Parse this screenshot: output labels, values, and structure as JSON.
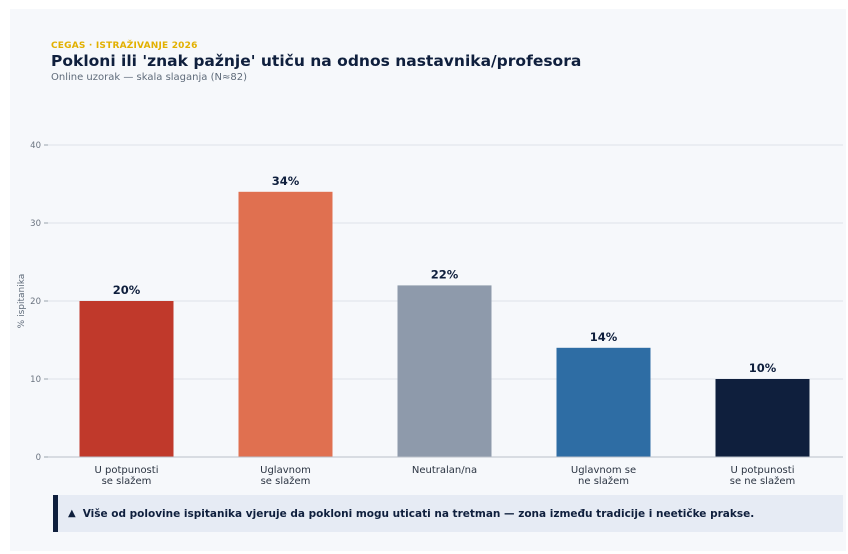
{
  "header": {
    "kicker": "CEGAS · ISTRAŽIVANJE 2026",
    "title": "Pokloni ili 'znak pažnje' utiču na odnos nastavnika/profesora",
    "subtitle": "Online uzorak — skala slaganja (N≈82)"
  },
  "chart_data": {
    "type": "bar",
    "categories": [
      [
        "U potpunosti",
        "se slažem"
      ],
      [
        "Uglavnom",
        "se slažem"
      ],
      [
        "Neutralan/na"
      ],
      [
        "Uglavnom se",
        "ne slažem"
      ],
      [
        "U potpunosti",
        "se ne slažem"
      ]
    ],
    "values": [
      20,
      34,
      22,
      14,
      10
    ],
    "value_labels": [
      "20%",
      "34%",
      "22%",
      "14%",
      "10%"
    ],
    "colors": [
      "#c0392b",
      "#e07050",
      "#8e9aab",
      "#2e6da4",
      "#0f1f3d"
    ],
    "ylabel": "% ispitanika",
    "ylim": [
      0,
      40
    ],
    "yticks": [
      0,
      10,
      20,
      30,
      40
    ],
    "grid": true
  },
  "note": {
    "icon": "triangle-up-icon",
    "text": "Više od polovine ispitanika vjeruje da pokloni mogu uticati na tretman — zona između tradicije i neetičke prakse."
  }
}
